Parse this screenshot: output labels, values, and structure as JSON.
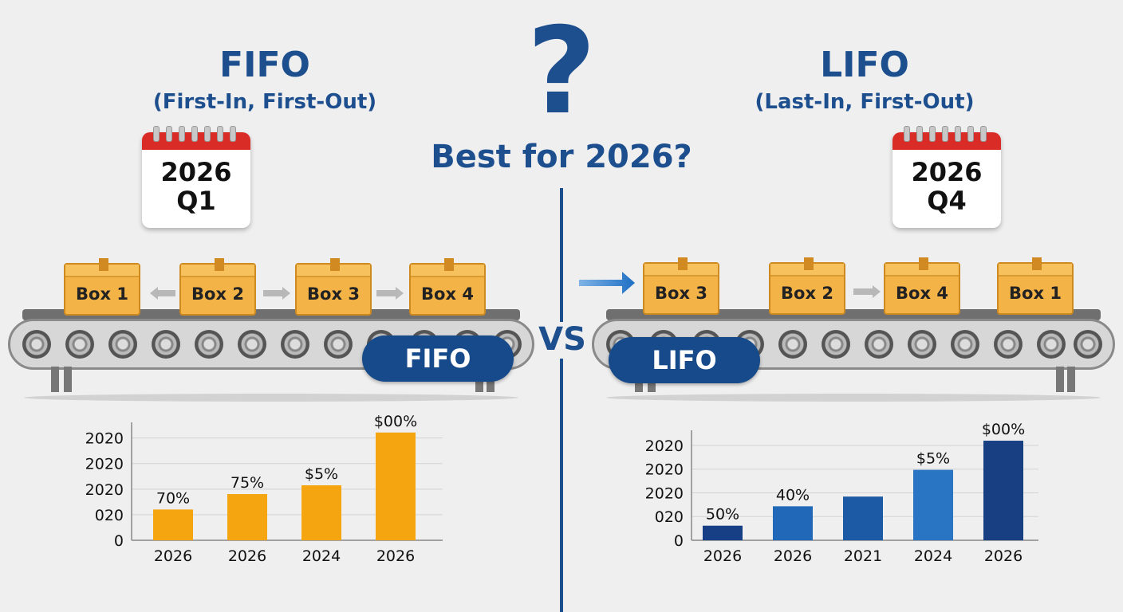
{
  "center": {
    "question_mark": "?",
    "headline": "Best for 2026?",
    "vs": "VS"
  },
  "fifo": {
    "title": "FIFO",
    "subtitle": "(First-In, First-Out)",
    "calendar": {
      "year": "2026",
      "quarter": "Q1"
    },
    "boxes": [
      "Box 1",
      "Box 2",
      "Box 3",
      "Box 4"
    ],
    "pill": "FIFO"
  },
  "lifo": {
    "title": "LIFO",
    "subtitle": "(Last-In, First-Out)",
    "calendar": {
      "year": "2026",
      "quarter": "Q4"
    },
    "boxes": [
      "Box 3",
      "Box 2",
      "Box 4",
      "Box 1"
    ],
    "pill": "LIFO"
  },
  "colors": {
    "brand_blue": "#1d4f8f",
    "fifo_bar": "#f5a510",
    "lifo_bars": [
      "#163f86",
      "#2169b8",
      "#1d5aa6",
      "#2a74c4",
      "#173f82"
    ]
  },
  "chart_data": [
    {
      "type": "bar",
      "categories": [
        "2026",
        "2026",
        "2024",
        "2026"
      ],
      "values": [
        14,
        21,
        25,
        49
      ],
      "data_labels": [
        "70%",
        "75%",
        "$5%",
        "$00%"
      ],
      "y_tick_labels": [
        "0",
        "020",
        "2020",
        "2020",
        "2020"
      ],
      "ylim": [
        0,
        50
      ],
      "grid": true
    },
    {
      "type": "bar",
      "categories": [
        "2026",
        "2026",
        "2021",
        "2024",
        "2026"
      ],
      "values": [
        6,
        14,
        18,
        29,
        41
      ],
      "data_labels": [
        "50%",
        "40%",
        "",
        "$5%",
        "$00%"
      ],
      "y_tick_labels": [
        "0",
        "020",
        "2020",
        "2020",
        "2020"
      ],
      "ylim": [
        0,
        42
      ],
      "grid": true
    }
  ]
}
